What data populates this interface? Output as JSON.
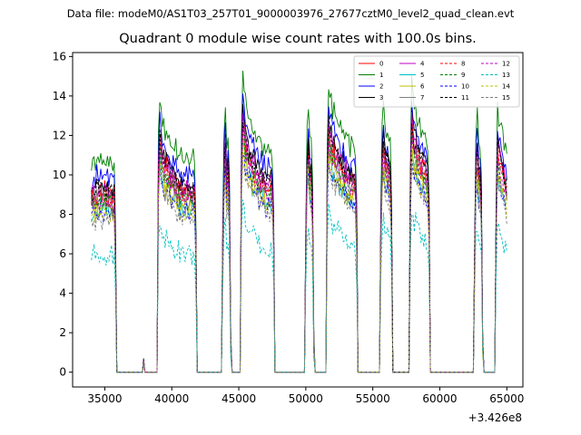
{
  "figure": {
    "suptitle": "Data file: modeM0/AS1T03_257T01_9000003976_27677cztM0_level2_quad_clean.evt",
    "title": "Quadrant 0 module wise count rates with 100.0s bins.",
    "x_offset_label": "+3.426e8"
  },
  "chart_data": {
    "type": "line",
    "title": "Quadrant 0 module wise count rates with 100.0s bins.",
    "xlabel": "",
    "ylabel": "",
    "x_offset": "+3.426e8",
    "xlim": [
      32600,
      66200
    ],
    "ylim": [
      -0.75,
      16.2
    ],
    "xticks": [
      35000,
      40000,
      45000,
      50000,
      55000,
      60000,
      65000
    ],
    "yticks": [
      0,
      2,
      4,
      6,
      8,
      10,
      12,
      14,
      16
    ],
    "grid": false,
    "legend_position": "top-right",
    "on_segments": [
      {
        "start": 34000,
        "end": 35800,
        "values": [
          8.9,
          9.0,
          9.2,
          8.7,
          9.3,
          9.0,
          8.8,
          9.4,
          8.9,
          9.1,
          9.3,
          8.8,
          9.2,
          8.9,
          9.0,
          9.1,
          8.7,
          9.2,
          6.0
        ]
      },
      {
        "start": 39000,
        "end": 41800,
        "values": [
          10.0,
          11.8,
          11.2,
          10.8,
          10.6,
          10.2,
          10.5,
          10.0,
          10.3,
          9.8,
          9.6,
          9.9,
          9.4,
          9.7,
          9.3,
          9.5,
          9.1,
          9.4,
          9.0,
          9.3,
          9.1,
          9.2,
          9.0,
          9.2,
          9.1,
          8.9,
          9.3,
          9.0,
          6.5
        ]
      },
      {
        "start": 43800,
        "end": 44400,
        "values": [
          6.0,
          10.4,
          11.5,
          9.5,
          10.0,
          8.5,
          1.5
        ]
      },
      {
        "start": 45200,
        "end": 47600,
        "values": [
          10.5,
          12.8,
          12.4,
          11.6,
          11.3,
          11.0,
          10.8,
          10.9,
          10.4,
          10.6,
          10.2,
          10.0,
          10.3,
          9.9,
          9.7,
          10.0,
          9.6,
          9.8,
          9.5,
          9.4,
          9.6,
          9.3,
          9.5,
          9.2,
          7.0
        ]
      },
      {
        "start": 50000,
        "end": 50600,
        "values": [
          6.5,
          10.3,
          11.2,
          10.0,
          9.8,
          8.5,
          1.5
        ]
      },
      {
        "start": 51600,
        "end": 53800,
        "values": [
          9.8,
          12.5,
          11.9,
          11.7,
          11.1,
          11.3,
          10.9,
          10.7,
          11.0,
          10.4,
          10.5,
          10.2,
          10.4,
          9.9,
          10.2,
          9.8,
          9.9,
          9.6,
          9.9,
          9.6,
          9.8,
          9.5,
          7.0
        ]
      },
      {
        "start": 55600,
        "end": 56400,
        "values": [
          7.0,
          10.6,
          11.6,
          10.8,
          10.3,
          10.6,
          10.0,
          9.8,
          7.5
        ]
      },
      {
        "start": 57800,
        "end": 59200,
        "values": [
          9.0,
          12.7,
          12.0,
          11.4,
          11.6,
          10.9,
          11.0,
          10.6,
          10.4,
          10.6,
          10.2,
          10.3,
          10.0,
          9.8,
          7.5
        ]
      },
      {
        "start": 62600,
        "end": 63200,
        "values": [
          6.0,
          10.4,
          11.0,
          10.0,
          9.8,
          8.5,
          1.5
        ]
      },
      {
        "start": 64200,
        "end": 65000,
        "values": [
          7.5,
          11.4,
          10.8,
          10.6,
          10.4,
          10.1,
          9.8,
          9.5,
          9.2
        ]
      }
    ],
    "blip": {
      "x": 37900,
      "y": 0.6
    },
    "series": [
      {
        "name": "0",
        "color": "#ff0000",
        "style": "solid",
        "scale": 1.0
      },
      {
        "name": "1",
        "color": "#008000",
        "style": "solid",
        "scale": 1.18
      },
      {
        "name": "2",
        "color": "#0000ff",
        "style": "solid",
        "scale": 1.09
      },
      {
        "name": "3",
        "color": "#000000",
        "style": "solid",
        "scale": 1.04
      },
      {
        "name": "4",
        "color": "#bf00bf",
        "style": "solid",
        "scale": 1.02
      },
      {
        "name": "5",
        "color": "#00bfbf",
        "style": "solid",
        "scale": 0.9
      },
      {
        "name": "6",
        "color": "#bfbf00",
        "style": "solid",
        "scale": 0.92
      },
      {
        "name": "7",
        "color": "#808080",
        "style": "solid",
        "scale": 0.97
      },
      {
        "name": "8",
        "color": "#ff0000",
        "style": "dashed",
        "scale": 0.98
      },
      {
        "name": "9",
        "color": "#008000",
        "style": "dashed",
        "scale": 0.95
      },
      {
        "name": "10",
        "color": "#0000ff",
        "style": "dashed",
        "scale": 0.88
      },
      {
        "name": "11",
        "color": "#000000",
        "style": "dashed",
        "scale": 1.01
      },
      {
        "name": "12",
        "color": "#bf00bf",
        "style": "dashed",
        "scale": 0.96
      },
      {
        "name": "13",
        "color": "#00bfbf",
        "style": "dashed",
        "scale": 0.66
      },
      {
        "name": "14",
        "color": "#bfbf00",
        "style": "dashed",
        "scale": 0.89
      },
      {
        "name": "15",
        "color": "#808080",
        "style": "dashed",
        "scale": 0.86
      }
    ]
  }
}
